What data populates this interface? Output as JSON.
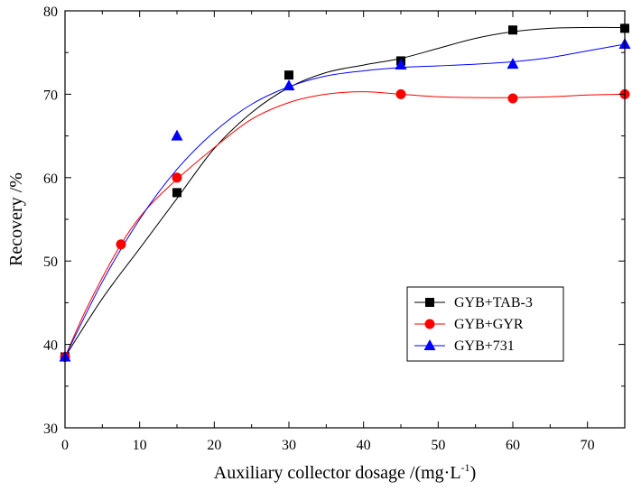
{
  "chart_data": {
    "type": "scatter",
    "xlabel": "Auxiliary collector dosage /(mg·L",
    "xlabel_sup": "-1",
    "xlabel_end": ")",
    "ylabel": "Recovery /%",
    "xlim": [
      0,
      75
    ],
    "ylim": [
      30,
      80
    ],
    "x_ticks": [
      0,
      10,
      20,
      30,
      40,
      50,
      60,
      70
    ],
    "y_ticks": [
      30,
      40,
      50,
      60,
      70,
      80
    ],
    "grid": false,
    "legend_position": "lower-right",
    "series": [
      {
        "name": "GYB+TAB-3",
        "marker": "square",
        "color": "#000000",
        "points": [
          [
            0,
            38.5
          ],
          [
            15,
            58.2
          ],
          [
            30,
            72.3
          ],
          [
            45,
            74.0
          ],
          [
            60,
            77.7
          ],
          [
            75,
            77.9
          ]
        ],
        "curve": [
          [
            0,
            38.5
          ],
          [
            5,
            45.5
          ],
          [
            10,
            51.5
          ],
          [
            15,
            57.5
          ],
          [
            20,
            63.5
          ],
          [
            25,
            67.8
          ],
          [
            30,
            70.8
          ],
          [
            35,
            72.6
          ],
          [
            40,
            73.5
          ],
          [
            45,
            74.3
          ],
          [
            50,
            75.5
          ],
          [
            55,
            76.7
          ],
          [
            60,
            77.5
          ],
          [
            65,
            77.9
          ],
          [
            70,
            78.0
          ],
          [
            75,
            78.0
          ]
        ]
      },
      {
        "name": "GYB+GYR",
        "marker": "circle",
        "color": "#ff0000",
        "points": [
          [
            0,
            38.5
          ],
          [
            7.5,
            52.0
          ],
          [
            15,
            60.0
          ],
          [
            45,
            70.0
          ],
          [
            60,
            69.5
          ],
          [
            75,
            70.0
          ]
        ],
        "curve": [
          [
            0,
            38.5
          ],
          [
            3,
            44.5
          ],
          [
            7.5,
            52.0
          ],
          [
            11,
            56.3
          ],
          [
            15,
            59.8
          ],
          [
            20,
            63.6
          ],
          [
            25,
            67.0
          ],
          [
            30,
            69.0
          ],
          [
            35,
            70.0
          ],
          [
            40,
            70.3
          ],
          [
            45,
            70.0
          ],
          [
            50,
            69.7
          ],
          [
            55,
            69.6
          ],
          [
            60,
            69.6
          ],
          [
            65,
            69.7
          ],
          [
            70,
            69.9
          ],
          [
            75,
            70.0
          ]
        ]
      },
      {
        "name": "GYB+731",
        "marker": "triangle",
        "color": "#0000ff",
        "points": [
          [
            0,
            38.5
          ],
          [
            15,
            65.0
          ],
          [
            30,
            71.0
          ],
          [
            45,
            73.5
          ],
          [
            60,
            73.6
          ],
          [
            75,
            76.0
          ]
        ],
        "curve": [
          [
            0,
            38.5
          ],
          [
            5,
            47.5
          ],
          [
            10,
            55.0
          ],
          [
            15,
            61.0
          ],
          [
            20,
            65.5
          ],
          [
            25,
            68.8
          ],
          [
            30,
            70.9
          ],
          [
            35,
            72.2
          ],
          [
            40,
            72.8
          ],
          [
            45,
            73.2
          ],
          [
            50,
            73.4
          ],
          [
            55,
            73.6
          ],
          [
            60,
            73.9
          ],
          [
            65,
            74.4
          ],
          [
            70,
            75.2
          ],
          [
            75,
            76.0
          ]
        ]
      }
    ]
  }
}
